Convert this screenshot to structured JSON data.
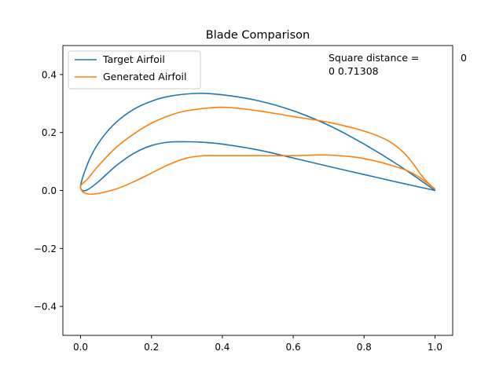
{
  "chart_data": {
    "type": "line",
    "title": "Blade Comparison",
    "xlabel": "",
    "ylabel": "",
    "xlim": [
      -0.05,
      1.05
    ],
    "ylim": [
      -0.5,
      0.5
    ],
    "x_ticks": [
      0.0,
      0.2,
      0.4,
      0.6,
      0.8,
      1.0
    ],
    "x_tick_labels": [
      "0.0",
      "0.2",
      "0.4",
      "0.6",
      "0.8",
      "1.0"
    ],
    "y_ticks": [
      -0.4,
      -0.2,
      0.0,
      0.2,
      0.4
    ],
    "y_tick_labels": [
      "−0.4",
      "−0.2",
      "0.0",
      "0.2",
      "0.4"
    ],
    "grid": false,
    "legend_position": "upper-left",
    "annotation": {
      "line1": "Square distance =",
      "line1_value": "0",
      "line2": "0  0.71308"
    },
    "series": [
      {
        "name": "Target Airfoil",
        "color": "#1f77b4",
        "x": [
          1.0,
          0.9,
          0.8,
          0.7,
          0.6,
          0.5,
          0.4,
          0.33,
          0.25,
          0.2,
          0.15,
          0.1,
          0.06,
          0.03,
          0.01,
          0.0,
          0.005,
          0.02,
          0.05,
          0.1,
          0.15,
          0.2,
          0.25,
          0.3,
          0.35,
          0.4,
          0.5,
          0.6,
          0.7,
          0.8,
          0.9,
          1.0
        ],
        "y": [
          0.0,
          0.085,
          0.16,
          0.225,
          0.275,
          0.31,
          0.33,
          0.335,
          0.325,
          0.308,
          0.28,
          0.235,
          0.18,
          0.12,
          0.06,
          0.015,
          0.0,
          0.003,
          0.03,
          0.085,
          0.128,
          0.155,
          0.167,
          0.168,
          0.166,
          0.16,
          0.14,
          0.112,
          0.083,
          0.055,
          0.027,
          0.0
        ]
      },
      {
        "name": "Generated Airfoil",
        "color": "#ff7f0e",
        "x": [
          1.0,
          0.97,
          0.92,
          0.87,
          0.8,
          0.7,
          0.6,
          0.5,
          0.4,
          0.3,
          0.25,
          0.2,
          0.15,
          0.1,
          0.05,
          0.02,
          0.0,
          0.01,
          0.04,
          0.1,
          0.15,
          0.2,
          0.25,
          0.3,
          0.35,
          0.4,
          0.5,
          0.6,
          0.7,
          0.8,
          0.9,
          0.95,
          1.0
        ],
        "y": [
          0.005,
          0.04,
          0.12,
          0.17,
          0.205,
          0.235,
          0.255,
          0.275,
          0.287,
          0.275,
          0.258,
          0.232,
          0.195,
          0.148,
          0.085,
          0.04,
          0.015,
          -0.008,
          -0.012,
          0.005,
          0.03,
          0.06,
          0.09,
          0.112,
          0.12,
          0.12,
          0.12,
          0.12,
          0.122,
          0.11,
          0.078,
          0.05,
          0.005
        ]
      }
    ]
  }
}
